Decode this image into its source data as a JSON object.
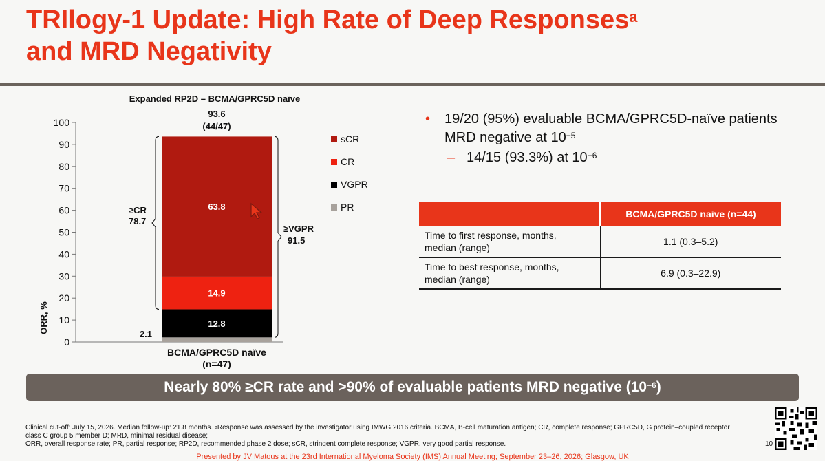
{
  "slide": {
    "title_main": "TRIlogy-1 Update: High Rate of Deep Responses",
    "title_sup": "a",
    "title_line2": "and MRD Negativity",
    "page_number": "10",
    "presented_by": "Presented by JV Matous at the 23rd International Myeloma Society (IMS) Annual Meeting; September 23–26, 2026; Glasgow, UK"
  },
  "bullets": {
    "b1_text": "19/20 (95%) evaluable BCMA/GPRC5D-naïve patients MRD negative at 10",
    "b1_exp": "−5",
    "b2_text": "14/15 (93.3%) at 10",
    "b2_exp": "−6"
  },
  "table": {
    "header": "BCMA/GPRC5D naive (n=44)",
    "rows": [
      {
        "label_line1": "Time to first response, months,",
        "label_line2": "median (range)",
        "value": "1.1 (0.3–5.2)"
      },
      {
        "label_line1": "Time to best response, months,",
        "label_line2": "median (range)",
        "value": "6.9 (0.3–22.9)"
      }
    ]
  },
  "banner": {
    "text": "Nearly 80% ≥CR rate and >90% of evaluable patients MRD negative (10",
    "exp": "−6",
    "close": ")"
  },
  "footnote": {
    "line1_a": "Clinical cut-off: July 15, 2026. Median follow-up: 21.8 months. ",
    "line1_sup": "a",
    "line1_b": "Response was assessed by the investigator using IMWG 2016 criteria. BCMA, B-cell maturation antigen; CR, complete response; GPRC5D, G protein–coupled receptor class C group 5 member D; MRD, minimal residual disease;",
    "line2": "ORR, overall response rate; PR, partial response; RP2D, recommended phase 2 dose; sCR, stringent complete response; VGPR, very good partial response."
  },
  "chart_data": {
    "type": "bar",
    "stacked": true,
    "title": "Expanded RP2D – BCMA/GPRC5D naïve",
    "ylabel": "ORR, %",
    "ylim": [
      0,
      100
    ],
    "yticks": [
      0,
      10,
      20,
      30,
      40,
      50,
      60,
      70,
      80,
      90,
      100
    ],
    "categories_line1": "BCMA/GPRC5D naïve",
    "categories_line2": "(n=47)",
    "total_label_line1": "93.6",
    "total_label_line2": "(44/47)",
    "series": [
      {
        "name": "PR",
        "value": 2.1,
        "color": "#a8a29c",
        "label": "2.1"
      },
      {
        "name": "VGPR",
        "value": 12.8,
        "color": "#000000",
        "label": "12.8"
      },
      {
        "name": "CR",
        "value": 14.9,
        "color": "#ee2211",
        "label": "14.9"
      },
      {
        "name": "sCR",
        "value": 63.8,
        "color": "#b01a10",
        "label": "63.8"
      }
    ],
    "legend_order": [
      "sCR",
      "CR",
      "VGPR",
      "PR"
    ],
    "legend_placement": "right",
    "brackets": [
      {
        "name": "≥CR",
        "value": "78.7"
      },
      {
        "name": "≥VGPR",
        "value": "91.5"
      }
    ]
  }
}
